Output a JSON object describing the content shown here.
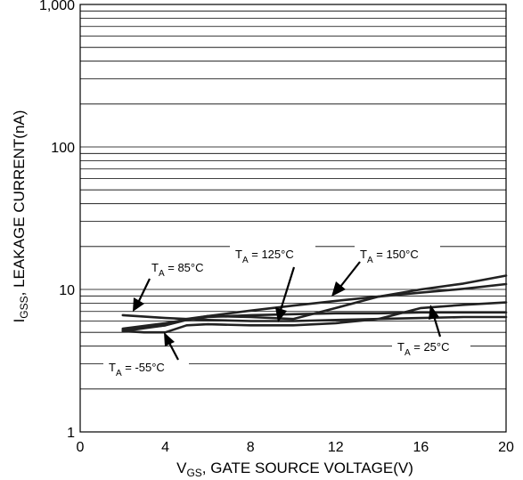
{
  "chart_data": {
    "type": "line",
    "x_scale": "linear",
    "y_scale": "log",
    "xlim": [
      0,
      20
    ],
    "ylim": [
      1,
      1000
    ],
    "xticks": [
      "0",
      "4",
      "8",
      "12",
      "16",
      "20"
    ],
    "yticks": [
      "1",
      "10",
      "100",
      "1,000"
    ],
    "xlabel": {
      "main": "V",
      "sub": "GS",
      "rest": ", GATE SOURCE VOLTAGE(V)"
    },
    "ylabel": {
      "main": "I",
      "sub": "GSS",
      "rest": ", LEAKAGE CURRENT(nA)"
    },
    "grid": true,
    "series": [
      {
        "name": "T_A = 85°C",
        "label_main": "T",
        "label_sub": "A",
        "label_rest": " = 85°C",
        "x": [
          2,
          4,
          6,
          8,
          10,
          12,
          14,
          16,
          18,
          20
        ],
        "y": [
          6.6,
          6.3,
          6.1,
          6.0,
          6.0,
          6.1,
          6.2,
          6.3,
          6.4,
          6.4
        ]
      },
      {
        "name": "T_A = 125°C",
        "label_main": "T",
        "label_sub": "A",
        "label_rest": " = 125°C",
        "x": [
          2,
          4,
          5,
          6,
          8,
          10,
          12,
          14,
          16,
          18,
          20
        ],
        "y": [
          5.2,
          5.6,
          6.1,
          6.4,
          6.6,
          6.7,
          6.8,
          6.8,
          6.9,
          6.9,
          6.9
        ]
      },
      {
        "name": "T_A = 150°C",
        "label_main": "T",
        "label_sub": "A",
        "label_rest": " = 150°C",
        "x": [
          2,
          4,
          5,
          6,
          8,
          10,
          12,
          14,
          16,
          18,
          20
        ],
        "y": [
          5.1,
          5.6,
          6.2,
          6.5,
          6.4,
          6.2,
          7.4,
          8.9,
          10.0,
          11.0,
          12.5
        ]
      },
      {
        "name": "T_A = 25°C",
        "label_main": "T",
        "label_sub": "A",
        "label_rest": " = 25°C",
        "x": [
          2,
          4,
          6,
          8,
          10,
          12,
          14,
          16,
          18,
          20
        ],
        "y": [
          5.3,
          5.8,
          6.5,
          7.1,
          7.7,
          8.3,
          8.9,
          9.5,
          10.1,
          10.9
        ]
      },
      {
        "name": "T_A = -55°C",
        "label_main": "T",
        "label_sub": "A",
        "label_rest": " = -55°C",
        "x": [
          2,
          3,
          4,
          5,
          6,
          8,
          10,
          12,
          14,
          16,
          18,
          20
        ],
        "y": [
          5.1,
          5.0,
          5.0,
          5.6,
          5.7,
          5.6,
          5.6,
          5.8,
          6.2,
          7.4,
          7.8,
          8.1
        ]
      }
    ]
  }
}
